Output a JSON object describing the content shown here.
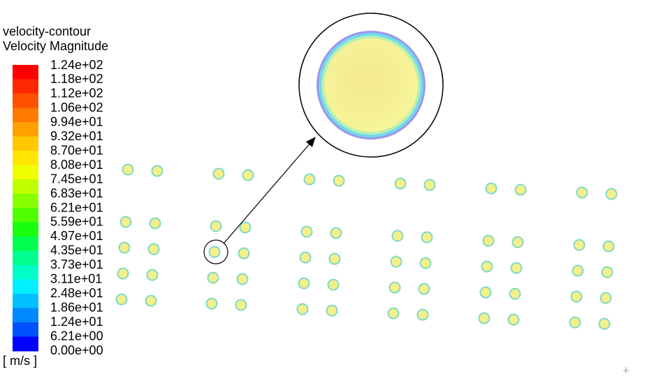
{
  "legend": {
    "title": "velocity-contour",
    "subtitle": "Velocity Magnitude",
    "labels": [
      "1.24e+02",
      "1.18e+02",
      "1.12e+02",
      "1.06e+02",
      "9.94e+01",
      "9.32e+01",
      "8.70e+01",
      "8.08e+01",
      "7.45e+01",
      "6.83e+01",
      "6.21e+01",
      "5.59e+01",
      "4.97e+01",
      "4.35e+01",
      "3.73e+01",
      "3.11e+01",
      "2.48e+01",
      "1.86e+01",
      "1.24e+01",
      "6.21e+00",
      "0.00e+00"
    ],
    "unit": "[ m/s ]"
  }
}
